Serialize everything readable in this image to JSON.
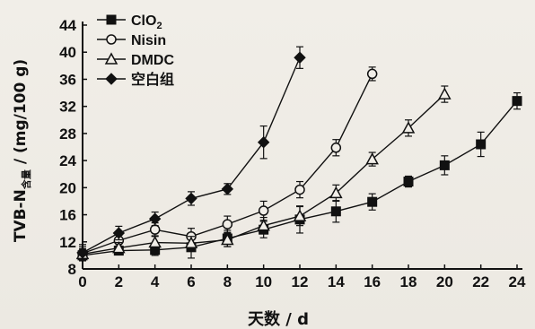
{
  "chart_data": {
    "type": "line",
    "title": "",
    "xlabel": "天数 / d",
    "ylabel_main": "TVB-N",
    "ylabel_sub": "含量",
    "ylabel_unit": "/ (mg/100 g)",
    "x_ticks": [
      0,
      2,
      4,
      6,
      8,
      10,
      12,
      14,
      16,
      18,
      20,
      22,
      24
    ],
    "y_ticks": [
      8,
      12,
      16,
      20,
      24,
      28,
      32,
      36,
      40,
      44
    ],
    "xlim": [
      0,
      24
    ],
    "ylim": [
      8,
      44
    ],
    "legend_position": "top-left",
    "series": [
      {
        "name": "ClO",
        "name_sub": "2",
        "marker": "square-filled",
        "x": [
          0,
          2,
          4,
          6,
          8,
          10,
          12,
          14,
          16,
          18,
          20,
          22,
          24
        ],
        "y": [
          10.0,
          10.7,
          10.8,
          11.2,
          12.5,
          13.8,
          15.3,
          16.5,
          17.9,
          20.9,
          23.3,
          26.4,
          32.8
        ],
        "err": [
          0.8,
          0.6,
          0.8,
          1.6,
          1.2,
          1.2,
          2.0,
          1.6,
          1.2,
          0.8,
          1.4,
          1.8,
          1.2
        ]
      },
      {
        "name": "Nisin",
        "marker": "circle-open",
        "x": [
          0,
          2,
          4,
          6,
          8,
          10,
          12,
          14,
          16
        ],
        "y": [
          10.3,
          12.2,
          13.8,
          12.8,
          14.6,
          16.6,
          19.7,
          25.9,
          36.8
        ],
        "err": [
          1.0,
          0.8,
          1.0,
          1.2,
          1.2,
          1.4,
          1.2,
          1.2,
          1.0
        ]
      },
      {
        "name": "DMDC",
        "marker": "triangle-open",
        "x": [
          0,
          2,
          4,
          6,
          8,
          10,
          12,
          14,
          16,
          18,
          20
        ],
        "y": [
          10.2,
          11.1,
          11.9,
          11.8,
          12.3,
          14.4,
          15.8,
          19.2,
          24.2,
          28.8,
          33.8
        ],
        "err": [
          0.8,
          0.8,
          1.0,
          1.0,
          1.0,
          1.2,
          1.4,
          1.2,
          1.0,
          1.2,
          1.2
        ]
      },
      {
        "name": "空白组",
        "marker": "diamond-filled",
        "x": [
          0,
          2,
          4,
          6,
          8,
          10,
          12
        ],
        "y": [
          10.4,
          13.3,
          15.4,
          18.4,
          19.8,
          26.7,
          39.2
        ],
        "err": [
          1.2,
          1.0,
          1.0,
          1.0,
          0.8,
          2.4,
          1.6
        ]
      }
    ]
  }
}
